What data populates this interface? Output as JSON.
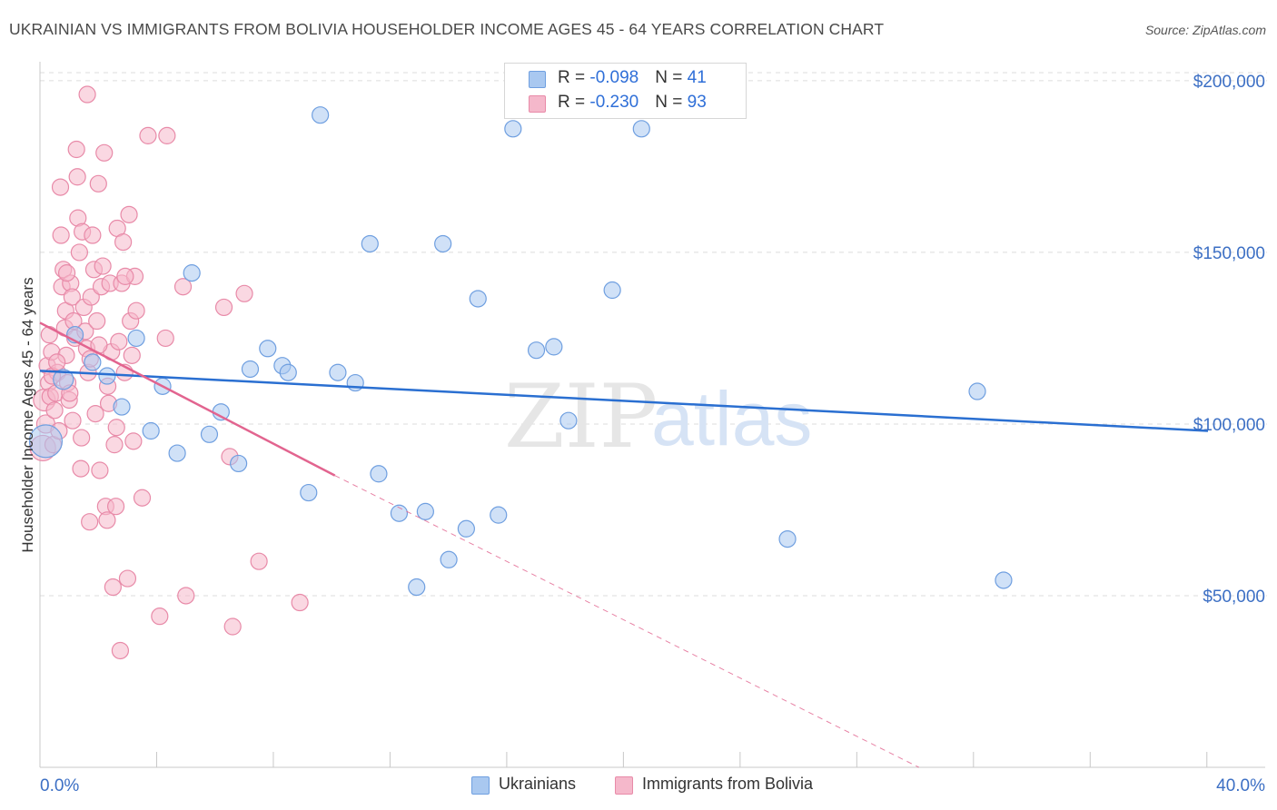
{
  "title": "UKRAINIAN VS IMMIGRANTS FROM BOLIVIA HOUSEHOLDER INCOME AGES 45 - 64 YEARS CORRELATION CHART",
  "source": "Source: ZipAtlas.com",
  "watermark": {
    "zip": "ZIP",
    "atlas": "atlas"
  },
  "legend": {
    "rows": [
      {
        "r_label": "R = ",
        "r_value": "-0.098",
        "n_label": "N = ",
        "n_value": "41",
        "color": "#a9c8f0"
      },
      {
        "r_label": "R = ",
        "r_value": "-0.230",
        "n_label": "N = ",
        "n_value": "93",
        "color": "#f5b8cb"
      }
    ]
  },
  "bottom_legend": [
    {
      "label": "Ukrainians",
      "color": "#a9c8f0"
    },
    {
      "label": "Immigrants from Bolivia",
      "color": "#f5b8cb"
    }
  ],
  "colors": {
    "ukr_fill": "#a9c8f0",
    "ukr_stroke": "#6f9fe0",
    "ukr_line": "#2a6fd1",
    "bol_fill": "#f5b8cb",
    "bol_stroke": "#e88aa8",
    "bol_line": "#e2648f",
    "axis_text": "#3c6fc4",
    "grid": "#dcdcdc"
  },
  "chart_data": {
    "type": "scatter",
    "title": "UKRAINIAN VS IMMIGRANTS FROM BOLIVIA HOUSEHOLDER INCOME AGES 45 - 64 YEARS CORRELATION CHART",
    "xlabel": "",
    "ylabel": "Householder Income Ages 45 - 64 years",
    "xlim": [
      0,
      40
    ],
    "ylim": [
      0,
      205000
    ],
    "x_tick_labels": [
      {
        "value": 0,
        "label": "0.0%"
      },
      {
        "value": 40,
        "label": "40.0%"
      }
    ],
    "y_ticks": [
      {
        "value": 50000,
        "label": "$50,000"
      },
      {
        "value": 100000,
        "label": "$100,000"
      },
      {
        "value": 150000,
        "label": "$150,000"
      },
      {
        "value": 200000,
        "label": "$200,000"
      }
    ],
    "series": [
      {
        "name": "Ukrainians",
        "R": -0.098,
        "N": 41,
        "trend": {
          "x0": 0,
          "y0": 115500,
          "x1": 40,
          "y1": 98000,
          "dashed_to": null
        },
        "points": [
          [
            0.2,
            95000,
            18
          ],
          [
            0.8,
            113000,
            11
          ],
          [
            1.2,
            126000,
            9
          ],
          [
            1.8,
            118000,
            9
          ],
          [
            2.3,
            114000,
            9
          ],
          [
            2.8,
            105000,
            9
          ],
          [
            3.3,
            125000,
            9
          ],
          [
            3.8,
            98000,
            9
          ],
          [
            4.2,
            111000,
            9
          ],
          [
            4.7,
            91500,
            9
          ],
          [
            5.2,
            144000,
            9
          ],
          [
            5.8,
            97000,
            9
          ],
          [
            6.2,
            103500,
            9
          ],
          [
            6.8,
            88500,
            9
          ],
          [
            7.2,
            116000,
            9
          ],
          [
            7.8,
            122000,
            9
          ],
          [
            8.3,
            117000,
            9
          ],
          [
            8.5,
            115000,
            9
          ],
          [
            9.2,
            80000,
            9
          ],
          [
            9.6,
            190000,
            9
          ],
          [
            10.2,
            115000,
            9
          ],
          [
            10.8,
            112000,
            9
          ],
          [
            11.3,
            152500,
            9
          ],
          [
            11.6,
            85500,
            9
          ],
          [
            12.3,
            74000,
            9
          ],
          [
            12.9,
            52500,
            9
          ],
          [
            13.2,
            74500,
            9
          ],
          [
            13.8,
            152500,
            9
          ],
          [
            14.0,
            60500,
            9
          ],
          [
            14.6,
            69500,
            9
          ],
          [
            15.0,
            136500,
            9
          ],
          [
            15.7,
            73500,
            9
          ],
          [
            16.2,
            186000,
            9
          ],
          [
            17.0,
            121500,
            9
          ],
          [
            17.6,
            122500,
            9
          ],
          [
            18.1,
            101000,
            9
          ],
          [
            19.6,
            139000,
            9
          ],
          [
            20.6,
            186000,
            9
          ],
          [
            25.6,
            66500,
            9
          ],
          [
            32.1,
            109500,
            9
          ],
          [
            33.0,
            54500,
            9
          ]
        ]
      },
      {
        "name": "Immigrants from Bolivia",
        "R": -0.23,
        "N": 93,
        "trend": {
          "x0": 0,
          "y0": 129500,
          "x1": 10.1,
          "y1": 85000,
          "dashed_to": {
            "x": 30.1,
            "y": 0
          }
        },
        "points": [
          [
            0.1,
            93000,
            14
          ],
          [
            0.15,
            107000,
            12
          ],
          [
            0.2,
            100000,
            10
          ],
          [
            0.25,
            117000,
            9
          ],
          [
            0.3,
            112000,
            9
          ],
          [
            0.35,
            108000,
            9
          ],
          [
            0.4,
            121000,
            9
          ],
          [
            0.45,
            94000,
            9
          ],
          [
            0.5,
            104000,
            9
          ],
          [
            0.55,
            109000,
            9
          ],
          [
            0.6,
            115000,
            9
          ],
          [
            0.65,
            98000,
            9
          ],
          [
            0.7,
            169000,
            9
          ],
          [
            0.72,
            155000,
            9
          ],
          [
            0.75,
            140000,
            9
          ],
          [
            0.8,
            145000,
            9
          ],
          [
            0.85,
            128000,
            9
          ],
          [
            0.88,
            133000,
            9
          ],
          [
            0.9,
            120000,
            9
          ],
          [
            0.95,
            112000,
            9
          ],
          [
            1.0,
            107000,
            9
          ],
          [
            1.05,
            141000,
            9
          ],
          [
            1.1,
            137000,
            9
          ],
          [
            1.15,
            130000,
            9
          ],
          [
            1.2,
            125000,
            9
          ],
          [
            1.25,
            180000,
            9
          ],
          [
            1.28,
            172000,
            9
          ],
          [
            1.3,
            160000,
            9
          ],
          [
            1.35,
            150000,
            9
          ],
          [
            1.4,
            87000,
            9
          ],
          [
            1.45,
            156000,
            9
          ],
          [
            1.5,
            134000,
            9
          ],
          [
            1.55,
            127000,
            9
          ],
          [
            1.6,
            122000,
            9
          ],
          [
            1.62,
            196000,
            9
          ],
          [
            1.65,
            115000,
            9
          ],
          [
            1.7,
            71500,
            9
          ],
          [
            1.75,
            137000,
            9
          ],
          [
            1.8,
            155000,
            9
          ],
          [
            1.85,
            145000,
            9
          ],
          [
            1.9,
            103000,
            9
          ],
          [
            1.95,
            130000,
            9
          ],
          [
            2.0,
            170000,
            9
          ],
          [
            2.05,
            86500,
            9
          ],
          [
            2.1,
            140000,
            9
          ],
          [
            2.15,
            146000,
            9
          ],
          [
            2.2,
            179000,
            9
          ],
          [
            2.25,
            76000,
            9
          ],
          [
            2.3,
            72000,
            9
          ],
          [
            2.35,
            106000,
            9
          ],
          [
            2.4,
            141000,
            9
          ],
          [
            2.45,
            121000,
            9
          ],
          [
            2.5,
            52500,
            9
          ],
          [
            2.55,
            94000,
            9
          ],
          [
            2.6,
            76000,
            9
          ],
          [
            2.65,
            157000,
            9
          ],
          [
            2.7,
            124000,
            9
          ],
          [
            2.75,
            34000,
            9
          ],
          [
            2.8,
            141000,
            9
          ],
          [
            2.85,
            153000,
            9
          ],
          [
            2.9,
            115000,
            9
          ],
          [
            3.0,
            55000,
            9
          ],
          [
            3.05,
            161000,
            9
          ],
          [
            3.1,
            130000,
            9
          ],
          [
            3.15,
            120000,
            9
          ],
          [
            3.2,
            95000,
            9
          ],
          [
            3.25,
            143000,
            9
          ],
          [
            3.3,
            133000,
            9
          ],
          [
            3.5,
            78500,
            9
          ],
          [
            3.7,
            184000,
            9
          ],
          [
            4.1,
            44000,
            9
          ],
          [
            4.3,
            125000,
            9
          ],
          [
            4.35,
            184000,
            9
          ],
          [
            4.9,
            140000,
            9
          ],
          [
            5.0,
            50000,
            9
          ],
          [
            6.3,
            134000,
            9
          ],
          [
            6.5,
            90500,
            9
          ],
          [
            6.6,
            41000,
            9
          ],
          [
            7.0,
            138000,
            9
          ],
          [
            7.5,
            60000,
            9
          ],
          [
            8.9,
            48000,
            9
          ],
          [
            0.42,
            114000,
            9
          ],
          [
            0.58,
            118000,
            9
          ],
          [
            1.02,
            109000,
            9
          ],
          [
            1.12,
            101000,
            9
          ],
          [
            1.42,
            96000,
            9
          ],
          [
            1.72,
            119000,
            9
          ],
          [
            2.02,
            123000,
            9
          ],
          [
            2.32,
            111000,
            9
          ],
          [
            2.62,
            99000,
            9
          ],
          [
            2.92,
            143000,
            9
          ],
          [
            0.32,
            126000,
            9
          ],
          [
            0.92,
            144000,
            9
          ]
        ]
      }
    ],
    "legend_position": "top-center"
  }
}
